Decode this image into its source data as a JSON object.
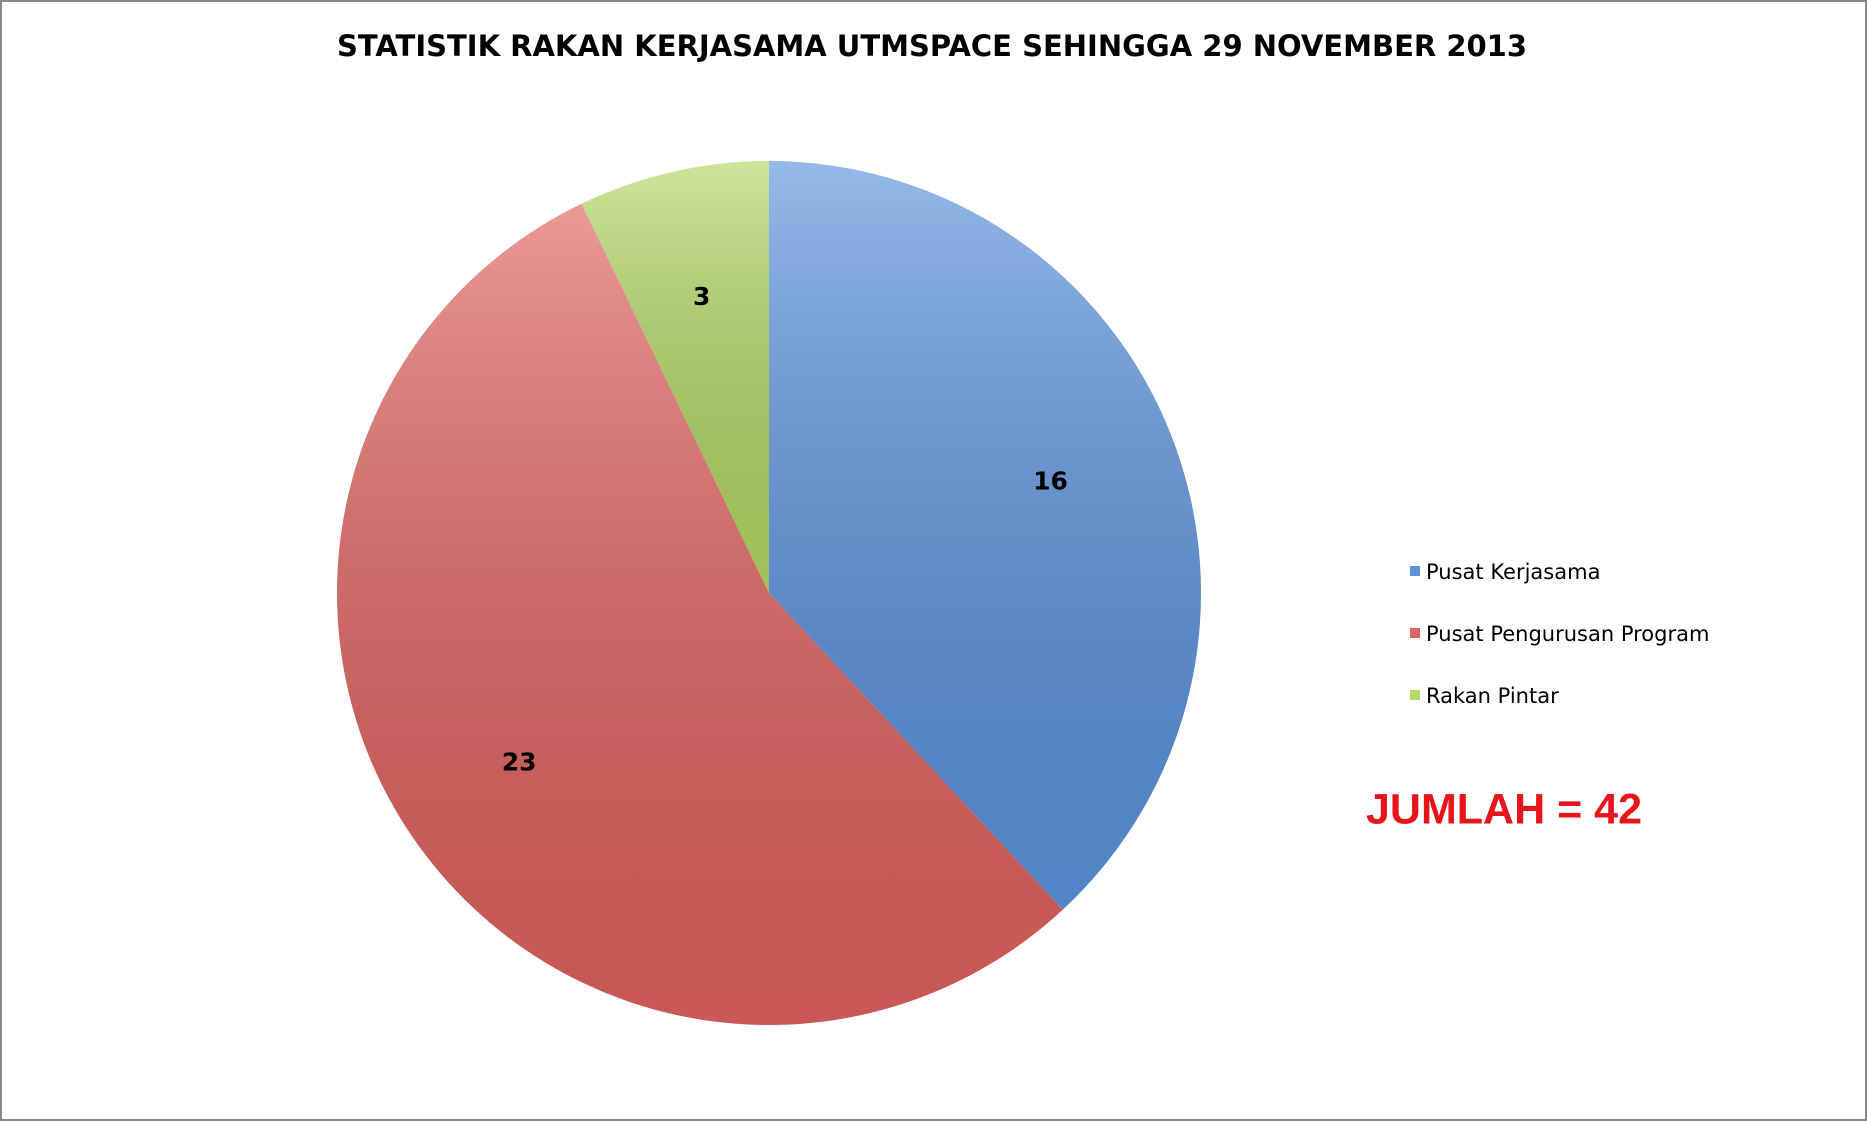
{
  "chart_data": {
    "type": "pie",
    "title": "STATISTIK RAKAN KERJASAMA UTMSPACE SEHINGGA 29 NOVEMBER 2013",
    "categories": [
      "Pusat Kerjasama",
      "Pusat Pengurusan Program",
      "Rakan Pintar"
    ],
    "values": [
      16,
      23,
      3
    ],
    "colors": [
      "#5b93de",
      "#e0625f",
      "#b3d865"
    ],
    "legend": "right",
    "annotation": "JUMLAH = 42"
  }
}
